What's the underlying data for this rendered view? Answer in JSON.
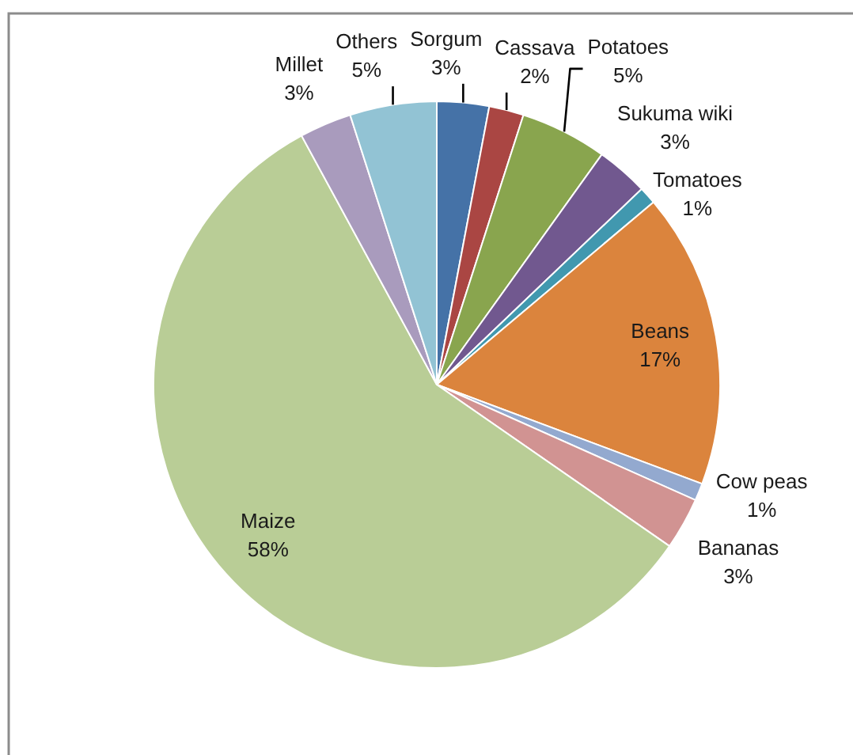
{
  "chart_data": {
    "type": "pie",
    "categories": [
      "Sorgum",
      "Cassava",
      "Potatoes",
      "Sukuma wiki",
      "Tomatoes",
      "Beans",
      "Cow peas",
      "Bananas",
      "Maize",
      "Millet",
      "Others"
    ],
    "values": [
      3,
      2,
      5,
      3,
      1,
      17,
      1,
      3,
      58,
      3,
      5
    ],
    "value_labels": [
      "3%",
      "2%",
      "5%",
      "3%",
      "1%",
      "17%",
      "1%",
      "3%",
      "58%",
      "3%",
      "5%"
    ],
    "colors": [
      "#4572a7",
      "#aa4643",
      "#89a54e",
      "#71588f",
      "#4198af",
      "#db843d",
      "#93a9cf",
      "#d19392",
      "#b9cd96",
      "#a99bbd",
      "#92c3d4"
    ]
  }
}
